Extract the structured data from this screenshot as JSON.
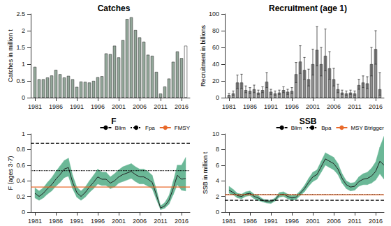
{
  "chart_data": [
    {
      "type": "bar",
      "title": "Catches",
      "ylabel": "Catches in million t",
      "x": [
        1981,
        1982,
        1983,
        1984,
        1985,
        1986,
        1987,
        1988,
        1989,
        1990,
        1991,
        1992,
        1993,
        1994,
        1995,
        1996,
        1997,
        1998,
        1999,
        2000,
        2001,
        2002,
        2003,
        2004,
        2005,
        2006,
        2007,
        2008,
        2009,
        2010,
        2011,
        2012,
        2013,
        2014,
        2015,
        2016,
        2017
      ],
      "series": [
        {
          "values": [
            0.92,
            0.55,
            0.55,
            0.6,
            0.66,
            0.83,
            0.7,
            0.6,
            0.65,
            0.55,
            0.32,
            0.48,
            0.47,
            0.45,
            0.5,
            0.61,
            0.64,
            1.32,
            1.3,
            1.55,
            1.2,
            1.72,
            2.35,
            2.4,
            2.02,
            1.8,
            1.67,
            1.28,
            1.25,
            0.77,
            0.12,
            0.33,
            0.57,
            1.07,
            1.38,
            1.18,
            1.55
          ],
          "colors": [
            "#93a89a",
            "#93a89a",
            "#93a89a",
            "#93a89a",
            "#93a89a",
            "#93a89a",
            "#93a89a",
            "#93a89a",
            "#93a89a",
            "#93a89a",
            "#93a89a",
            "#93a89a",
            "#93a89a",
            "#93a89a",
            "#93a89a",
            "#93a89a",
            "#93a89a",
            "#93a89a",
            "#93a89a",
            "#93a89a",
            "#93a89a",
            "#93a89a",
            "#93a89a",
            "#93a89a",
            "#93a89a",
            "#93a89a",
            "#93a89a",
            "#93a89a",
            "#93a89a",
            "#93a89a",
            "#93a89a",
            "#93a89a",
            "#93a89a",
            "#93a89a",
            "#93a89a",
            "#93a89a",
            "#ffffff"
          ]
        }
      ],
      "xlim": [
        1980,
        2018
      ],
      "ylim": [
        0,
        2.5
      ],
      "xticks": [
        1981,
        1986,
        1991,
        1996,
        2001,
        2006,
        2011,
        2016
      ],
      "yticks": [
        0,
        0.5,
        1,
        1.5,
        2,
        2.5
      ],
      "grid": false
    },
    {
      "type": "bar",
      "title": "Recruitment (age 1)",
      "ylabel": "Recruitment in billions",
      "x": [
        1981,
        1982,
        1983,
        1984,
        1985,
        1986,
        1987,
        1988,
        1989,
        1990,
        1991,
        1992,
        1993,
        1994,
        1995,
        1996,
        1997,
        1998,
        1999,
        2000,
        2001,
        2002,
        2003,
        2004,
        2005,
        2006,
        2007,
        2008,
        2009,
        2010,
        2011,
        2012,
        2013,
        2014,
        2015,
        2016,
        2017
      ],
      "series": [
        {
          "values": [
            3,
            5,
            18,
            18,
            9,
            8,
            10,
            6,
            9,
            19,
            7,
            5,
            6,
            9,
            7,
            8,
            28,
            43,
            33,
            22,
            40,
            57,
            40,
            50,
            35,
            22,
            10,
            6,
            5,
            6,
            5,
            15,
            18,
            17,
            40,
            58,
            10
          ],
          "low": [
            2,
            3,
            11,
            11,
            6,
            5,
            6,
            4,
            6,
            12,
            4,
            3,
            4,
            6,
            4,
            5,
            18,
            29,
            22,
            14,
            27,
            38,
            26,
            32,
            22,
            14,
            6,
            4,
            3,
            4,
            3,
            10,
            12,
            11,
            26,
            40,
            3
          ],
          "high": [
            5,
            8,
            27,
            28,
            14,
            12,
            15,
            9,
            13,
            30,
            10,
            8,
            9,
            13,
            10,
            12,
            42,
            62,
            48,
            34,
            58,
            85,
            60,
            82,
            55,
            35,
            16,
            9,
            8,
            9,
            8,
            22,
            26,
            25,
            60,
            80,
            30
          ],
          "color": "#8e8e8e"
        }
      ],
      "xlim": [
        1980,
        2018
      ],
      "ylim": [
        0,
        100
      ],
      "xticks": [
        1981,
        1986,
        1991,
        1996,
        2001,
        2006,
        2011,
        2016
      ],
      "yticks": [
        0,
        20,
        40,
        60,
        80,
        100
      ],
      "grid": false
    },
    {
      "type": "line",
      "title": "F",
      "ylabel": "F (ages 3-7)",
      "x": [
        1981,
        1982,
        1983,
        1984,
        1985,
        1986,
        1987,
        1988,
        1989,
        1990,
        1991,
        1992,
        1993,
        1994,
        1995,
        1996,
        1997,
        1998,
        1999,
        2000,
        2001,
        2002,
        2003,
        2004,
        2005,
        2006,
        2007,
        2008,
        2009,
        2010,
        2011,
        2012,
        2013,
        2014,
        2015,
        2016,
        2017
      ],
      "series": [
        {
          "values": [
            0.24,
            0.2,
            0.24,
            0.3,
            0.35,
            0.42,
            0.48,
            0.55,
            0.57,
            0.38,
            0.25,
            0.2,
            0.25,
            0.32,
            0.38,
            0.45,
            0.42,
            0.42,
            0.37,
            0.4,
            0.45,
            0.48,
            0.5,
            0.52,
            0.48,
            0.45,
            0.45,
            0.42,
            0.38,
            0.22,
            0.05,
            0.08,
            0.15,
            0.3,
            0.47,
            0.42,
            0.43
          ],
          "low": [
            0.18,
            0.15,
            0.18,
            0.23,
            0.27,
            0.33,
            0.38,
            0.44,
            0.46,
            0.3,
            0.19,
            0.15,
            0.19,
            0.25,
            0.3,
            0.36,
            0.34,
            0.34,
            0.3,
            0.32,
            0.37,
            0.39,
            0.41,
            0.43,
            0.39,
            0.36,
            0.36,
            0.33,
            0.3,
            0.16,
            0.03,
            0.05,
            0.1,
            0.22,
            0.35,
            0.28,
            0.27
          ],
          "high": [
            0.31,
            0.27,
            0.31,
            0.38,
            0.44,
            0.52,
            0.59,
            0.66,
            0.69,
            0.47,
            0.32,
            0.27,
            0.32,
            0.4,
            0.47,
            0.55,
            0.51,
            0.51,
            0.45,
            0.49,
            0.54,
            0.58,
            0.6,
            0.62,
            0.58,
            0.55,
            0.55,
            0.52,
            0.47,
            0.29,
            0.08,
            0.12,
            0.21,
            0.39,
            0.6,
            0.6,
            0.7
          ],
          "color": "#222222"
        }
      ],
      "reference_lines": [
        {
          "name": "Blim",
          "value": 0.88,
          "line_style": "dashed",
          "color": "#000000"
        },
        {
          "name": "Fpa",
          "value": 0.53,
          "line_style": "dotted",
          "color": "#000000"
        },
        {
          "name": "FMSY",
          "value": 0.32,
          "line_style": "solid",
          "color": "#e8692a"
        }
      ],
      "legend": "upper right",
      "xlim": [
        1980,
        2018
      ],
      "ylim": [
        0,
        1
      ],
      "xticks": [
        1981,
        1986,
        1991,
        1996,
        2001,
        2006,
        2011,
        2016
      ],
      "yticks": [
        0,
        0.2,
        0.4,
        0.6,
        0.8,
        1
      ],
      "grid": false
    },
    {
      "type": "line",
      "title": "SSB",
      "ylabel": "SSB in million t",
      "x": [
        1981,
        1982,
        1983,
        1984,
        1985,
        1986,
        1987,
        1988,
        1989,
        1990,
        1991,
        1992,
        1993,
        1994,
        1995,
        1996,
        1997,
        1998,
        1999,
        2000,
        2001,
        2002,
        2003,
        2004,
        2005,
        2006,
        2007,
        2008,
        2009,
        2010,
        2011,
        2012,
        2013,
        2014,
        2015,
        2016,
        2017,
        2018
      ],
      "series": [
        {
          "values": [
            2.8,
            2.5,
            2.1,
            2.0,
            2.3,
            2.4,
            2.0,
            1.8,
            1.5,
            1.35,
            1.3,
            1.6,
            2.2,
            2.3,
            2.0,
            1.8,
            1.9,
            2.4,
            3.0,
            3.8,
            4.5,
            4.8,
            5.8,
            6.8,
            6.5,
            6.2,
            5.5,
            4.3,
            3.5,
            3.2,
            3.3,
            3.9,
            4.2,
            4.3,
            4.6,
            5.2,
            6.5,
            6.0
          ],
          "low": [
            2.4,
            2.2,
            1.8,
            1.7,
            2.0,
            2.1,
            1.7,
            1.5,
            1.3,
            1.15,
            1.1,
            1.4,
            1.9,
            2.0,
            1.7,
            1.5,
            1.6,
            2.1,
            2.6,
            3.3,
            3.9,
            4.2,
            5.1,
            6.0,
            5.7,
            5.4,
            4.8,
            3.7,
            3.0,
            2.7,
            2.8,
            3.3,
            3.5,
            3.5,
            3.7,
            4.1,
            4.9,
            4.2
          ],
          "high": [
            3.3,
            2.9,
            2.4,
            2.3,
            2.6,
            2.7,
            2.3,
            2.1,
            1.7,
            1.55,
            1.5,
            1.8,
            2.5,
            2.6,
            2.3,
            2.1,
            2.2,
            2.7,
            3.4,
            4.3,
            5.1,
            5.4,
            6.5,
            7.6,
            7.3,
            7.0,
            6.2,
            4.9,
            4.0,
            3.7,
            3.8,
            4.5,
            4.9,
            5.1,
            5.6,
            6.4,
            8.3,
            9.7
          ],
          "color": "#222222"
        }
      ],
      "reference_lines": [
        {
          "name": "Blim",
          "value": 1.5,
          "line_style": "dashed",
          "color": "#000000"
        },
        {
          "name": "Bpa",
          "value": 2.25,
          "line_style": "dotted",
          "color": "#000000"
        },
        {
          "name": "MSY Btrigger",
          "value": 2.2,
          "line_style": "solid",
          "color": "#e8692a"
        }
      ],
      "legend": "upper right",
      "xlim": [
        1980,
        2018
      ],
      "ylim": [
        0,
        10
      ],
      "xticks": [
        1981,
        1986,
        1991,
        1996,
        2001,
        2006,
        2011,
        2016
      ],
      "yticks": [
        0,
        2,
        4,
        6,
        8,
        10
      ],
      "grid": false
    }
  ]
}
